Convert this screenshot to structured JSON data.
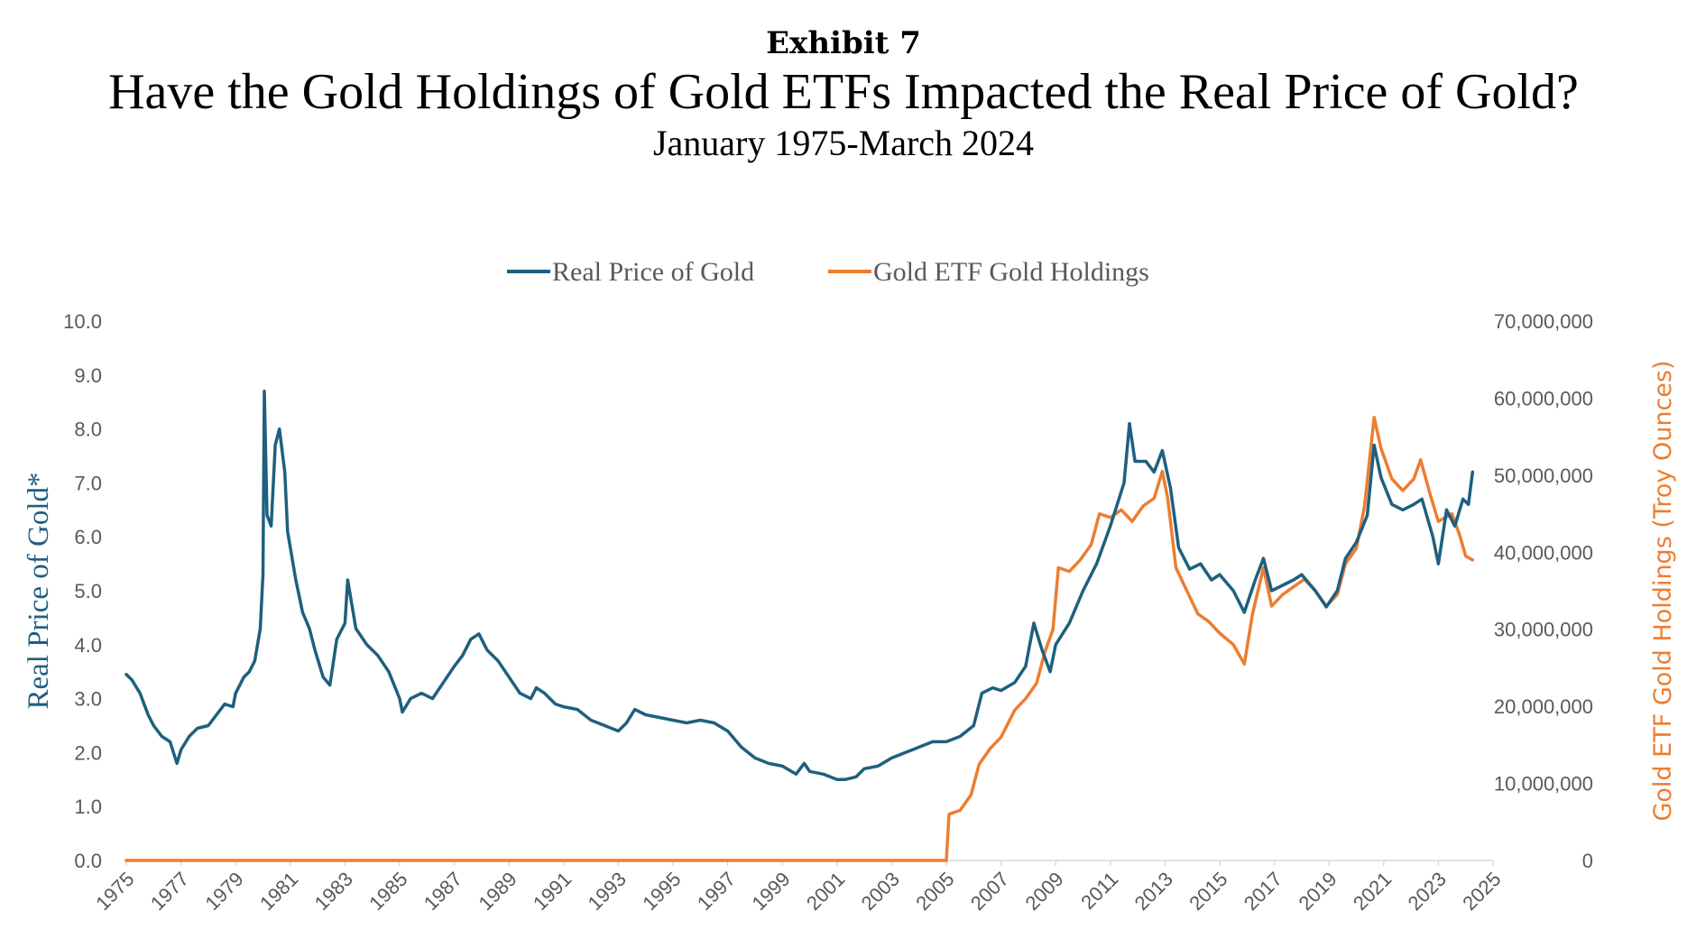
{
  "header": {
    "exhibit": "Exhibit 7",
    "title": "Have the Gold Holdings of Gold ETFs Impacted the Real Price of Gold?",
    "subtitle": "January 1975-March 2024"
  },
  "colors": {
    "gold_price": "#1f5f7f",
    "etf_holdings": "#ed7d31",
    "axis": "#d9d9d9",
    "tick_text": "#595959"
  },
  "chart_data": {
    "type": "line",
    "title": "Have the Gold Holdings of Gold ETFs Impacted the Real Price of Gold?",
    "subtitle": "January 1975-March 2024",
    "legend_position": "top",
    "grid": false,
    "x_ticks": [
      "1975",
      "1977",
      "1979",
      "1981",
      "1983",
      "1985",
      "1987",
      "1989",
      "1991",
      "1993",
      "1995",
      "1997",
      "1999",
      "2001",
      "2003",
      "2005",
      "2007",
      "2009",
      "2011",
      "2013",
      "2015",
      "2017",
      "2019",
      "2021",
      "2023",
      "2025"
    ],
    "xlim": [
      1975,
      2025
    ],
    "y_left": {
      "label": "Real Price of Gold*",
      "lim": [
        0,
        10
      ],
      "ticks": [
        "0.0",
        "1.0",
        "2.0",
        "3.0",
        "4.0",
        "5.0",
        "6.0",
        "7.0",
        "8.0",
        "9.0",
        "10.0"
      ]
    },
    "y_right": {
      "label": "Gold ETF Gold Holdings (Troy Ounces)",
      "lim": [
        0,
        70000000
      ],
      "ticks": [
        "0",
        "10,000,000",
        "20,000,000",
        "30,000,000",
        "40,000,000",
        "50,000,000",
        "60,000,000",
        "70,000,000"
      ]
    },
    "series": [
      {
        "name": "Real Price of Gold",
        "axis": "left",
        "points": [
          [
            1975.0,
            3.45
          ],
          [
            1975.2,
            3.35
          ],
          [
            1975.5,
            3.1
          ],
          [
            1975.8,
            2.7
          ],
          [
            1976.0,
            2.5
          ],
          [
            1976.3,
            2.3
          ],
          [
            1976.6,
            2.2
          ],
          [
            1976.85,
            1.8
          ],
          [
            1977.0,
            2.05
          ],
          [
            1977.3,
            2.3
          ],
          [
            1977.6,
            2.45
          ],
          [
            1978.0,
            2.5
          ],
          [
            1978.3,
            2.7
          ],
          [
            1978.6,
            2.9
          ],
          [
            1978.9,
            2.85
          ],
          [
            1979.0,
            3.1
          ],
          [
            1979.3,
            3.4
          ],
          [
            1979.5,
            3.5
          ],
          [
            1979.7,
            3.7
          ],
          [
            1979.9,
            4.3
          ],
          [
            1980.0,
            5.3
          ],
          [
            1980.05,
            8.7
          ],
          [
            1980.15,
            6.4
          ],
          [
            1980.3,
            6.2
          ],
          [
            1980.45,
            7.7
          ],
          [
            1980.6,
            8.0
          ],
          [
            1980.8,
            7.2
          ],
          [
            1980.9,
            6.1
          ],
          [
            1981.0,
            5.8
          ],
          [
            1981.2,
            5.2
          ],
          [
            1981.45,
            4.6
          ],
          [
            1981.7,
            4.3
          ],
          [
            1981.9,
            3.9
          ],
          [
            1982.2,
            3.4
          ],
          [
            1982.45,
            3.25
          ],
          [
            1982.7,
            4.1
          ],
          [
            1983.0,
            4.4
          ],
          [
            1983.1,
            5.2
          ],
          [
            1983.4,
            4.3
          ],
          [
            1983.8,
            4.0
          ],
          [
            1984.2,
            3.8
          ],
          [
            1984.6,
            3.5
          ],
          [
            1985.0,
            3.0
          ],
          [
            1985.1,
            2.75
          ],
          [
            1985.4,
            3.0
          ],
          [
            1985.8,
            3.1
          ],
          [
            1986.2,
            3.0
          ],
          [
            1986.6,
            3.3
          ],
          [
            1987.0,
            3.6
          ],
          [
            1987.3,
            3.8
          ],
          [
            1987.6,
            4.1
          ],
          [
            1987.9,
            4.2
          ],
          [
            1988.2,
            3.9
          ],
          [
            1988.6,
            3.7
          ],
          [
            1989.0,
            3.4
          ],
          [
            1989.4,
            3.1
          ],
          [
            1989.8,
            3.0
          ],
          [
            1990.0,
            3.2
          ],
          [
            1990.3,
            3.1
          ],
          [
            1990.7,
            2.9
          ],
          [
            1991.0,
            2.85
          ],
          [
            1991.5,
            2.8
          ],
          [
            1992.0,
            2.6
          ],
          [
            1992.5,
            2.5
          ],
          [
            1993.0,
            2.4
          ],
          [
            1993.3,
            2.55
          ],
          [
            1993.6,
            2.8
          ],
          [
            1994.0,
            2.7
          ],
          [
            1994.5,
            2.65
          ],
          [
            1995.0,
            2.6
          ],
          [
            1995.5,
            2.55
          ],
          [
            1996.0,
            2.6
          ],
          [
            1996.5,
            2.55
          ],
          [
            1997.0,
            2.4
          ],
          [
            1997.5,
            2.1
          ],
          [
            1998.0,
            1.9
          ],
          [
            1998.5,
            1.8
          ],
          [
            1999.0,
            1.75
          ],
          [
            1999.5,
            1.6
          ],
          [
            1999.8,
            1.8
          ],
          [
            2000.0,
            1.65
          ],
          [
            2000.5,
            1.6
          ],
          [
            2001.0,
            1.5
          ],
          [
            2001.3,
            1.5
          ],
          [
            2001.7,
            1.55
          ],
          [
            2002.0,
            1.7
          ],
          [
            2002.5,
            1.75
          ],
          [
            2003.0,
            1.9
          ],
          [
            2003.5,
            2.0
          ],
          [
            2004.0,
            2.1
          ],
          [
            2004.5,
            2.2
          ],
          [
            2005.0,
            2.2
          ],
          [
            2005.5,
            2.3
          ],
          [
            2006.0,
            2.5
          ],
          [
            2006.3,
            3.1
          ],
          [
            2006.7,
            3.2
          ],
          [
            2007.0,
            3.15
          ],
          [
            2007.5,
            3.3
          ],
          [
            2007.9,
            3.6
          ],
          [
            2008.2,
            4.4
          ],
          [
            2008.5,
            3.9
          ],
          [
            2008.8,
            3.5
          ],
          [
            2009.0,
            4.0
          ],
          [
            2009.5,
            4.4
          ],
          [
            2010.0,
            5.0
          ],
          [
            2010.5,
            5.5
          ],
          [
            2011.0,
            6.2
          ],
          [
            2011.5,
            7.0
          ],
          [
            2011.7,
            8.1
          ],
          [
            2011.9,
            7.4
          ],
          [
            2012.3,
            7.4
          ],
          [
            2012.6,
            7.2
          ],
          [
            2012.9,
            7.6
          ],
          [
            2013.2,
            6.9
          ],
          [
            2013.5,
            5.8
          ],
          [
            2013.9,
            5.4
          ],
          [
            2014.3,
            5.5
          ],
          [
            2014.7,
            5.2
          ],
          [
            2015.0,
            5.3
          ],
          [
            2015.5,
            5.0
          ],
          [
            2015.9,
            4.6
          ],
          [
            2016.3,
            5.2
          ],
          [
            2016.6,
            5.6
          ],
          [
            2016.9,
            5.0
          ],
          [
            2017.3,
            5.1
          ],
          [
            2017.7,
            5.2
          ],
          [
            2018.0,
            5.3
          ],
          [
            2018.5,
            5.0
          ],
          [
            2018.9,
            4.7
          ],
          [
            2019.3,
            5.0
          ],
          [
            2019.6,
            5.6
          ],
          [
            2020.0,
            5.9
          ],
          [
            2020.4,
            6.4
          ],
          [
            2020.65,
            7.7
          ],
          [
            2020.9,
            7.1
          ],
          [
            2021.3,
            6.6
          ],
          [
            2021.7,
            6.5
          ],
          [
            2022.1,
            6.6
          ],
          [
            2022.4,
            6.7
          ],
          [
            2022.8,
            6.0
          ],
          [
            2023.0,
            5.5
          ],
          [
            2023.3,
            6.5
          ],
          [
            2023.6,
            6.2
          ],
          [
            2023.9,
            6.7
          ],
          [
            2024.1,
            6.6
          ],
          [
            2024.25,
            7.2
          ]
        ]
      },
      {
        "name": "Gold ETF Gold Holdings",
        "axis": "right",
        "points": [
          [
            1975.0,
            0
          ],
          [
            2005.0,
            0
          ],
          [
            2005.1,
            6000000
          ],
          [
            2005.5,
            6500000
          ],
          [
            2005.9,
            8500000
          ],
          [
            2006.2,
            12500000
          ],
          [
            2006.6,
            14500000
          ],
          [
            2007.0,
            16000000
          ],
          [
            2007.5,
            19500000
          ],
          [
            2007.9,
            21000000
          ],
          [
            2008.3,
            23000000
          ],
          [
            2008.6,
            27000000
          ],
          [
            2008.9,
            30000000
          ],
          [
            2009.1,
            38000000
          ],
          [
            2009.5,
            37500000
          ],
          [
            2009.9,
            39000000
          ],
          [
            2010.3,
            41000000
          ],
          [
            2010.6,
            45000000
          ],
          [
            2011.0,
            44500000
          ],
          [
            2011.4,
            45500000
          ],
          [
            2011.8,
            44000000
          ],
          [
            2012.2,
            46000000
          ],
          [
            2012.6,
            47000000
          ],
          [
            2012.9,
            50500000
          ],
          [
            2013.1,
            47000000
          ],
          [
            2013.4,
            38000000
          ],
          [
            2013.8,
            35000000
          ],
          [
            2014.2,
            32000000
          ],
          [
            2014.6,
            31000000
          ],
          [
            2015.0,
            29500000
          ],
          [
            2015.5,
            28000000
          ],
          [
            2015.9,
            25500000
          ],
          [
            2016.2,
            32000000
          ],
          [
            2016.6,
            38000000
          ],
          [
            2016.9,
            33000000
          ],
          [
            2017.3,
            34500000
          ],
          [
            2017.7,
            35500000
          ],
          [
            2018.1,
            36500000
          ],
          [
            2018.5,
            35000000
          ],
          [
            2018.9,
            33000000
          ],
          [
            2019.3,
            34500000
          ],
          [
            2019.6,
            38500000
          ],
          [
            2020.0,
            40500000
          ],
          [
            2020.3,
            46000000
          ],
          [
            2020.65,
            57500000
          ],
          [
            2020.9,
            53500000
          ],
          [
            2021.3,
            49500000
          ],
          [
            2021.7,
            48000000
          ],
          [
            2022.1,
            49500000
          ],
          [
            2022.35,
            52000000
          ],
          [
            2022.7,
            47500000
          ],
          [
            2023.0,
            44000000
          ],
          [
            2023.5,
            45000000
          ],
          [
            2023.8,
            42000000
          ],
          [
            2024.0,
            39500000
          ],
          [
            2024.25,
            39000000
          ]
        ]
      }
    ]
  }
}
